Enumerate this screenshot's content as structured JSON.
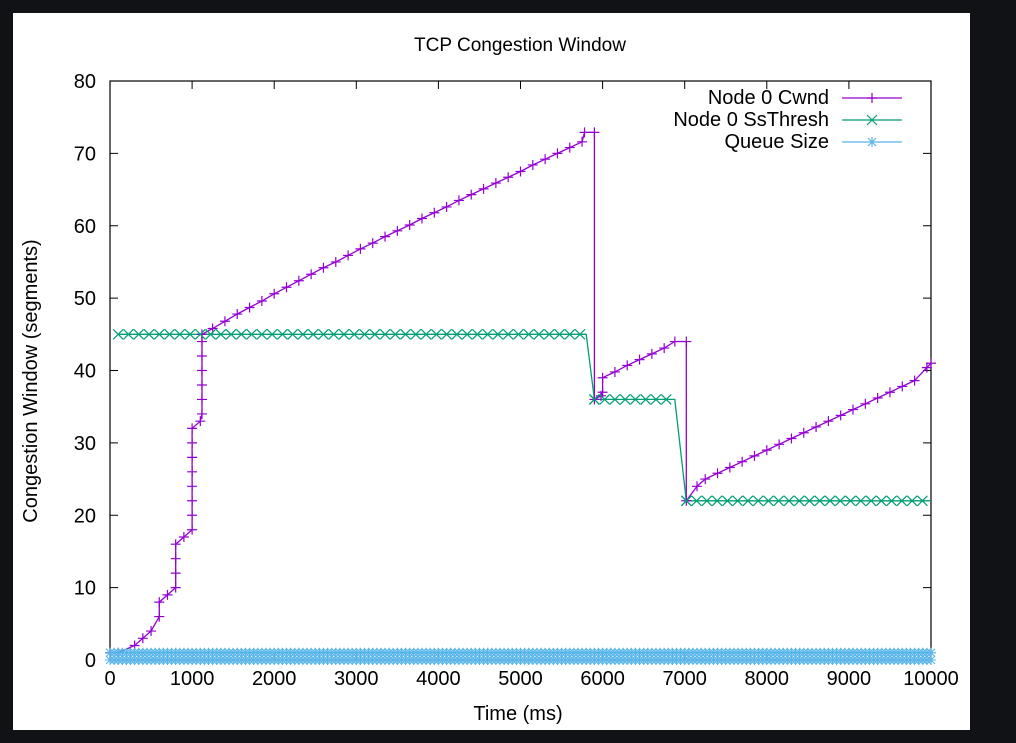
{
  "chart_data": {
    "type": "line",
    "title": "TCP Congestion Window",
    "xlabel": "Time (ms)",
    "ylabel": "Congestion Window (segments)",
    "xlim": [
      0,
      10000
    ],
    "ylim": [
      0,
      80
    ],
    "xticks": [
      "0",
      "1000",
      "2000",
      "3000",
      "4000",
      "5000",
      "6000",
      "7000",
      "8000",
      "9000",
      "10000"
    ],
    "yticks": [
      "0",
      "10",
      "20",
      "30",
      "40",
      "50",
      "60",
      "70",
      "80"
    ],
    "grid": false,
    "legend_position": "top-right",
    "series": [
      {
        "name": "Node 0 Cwnd",
        "color": "#9400d3",
        "marker": "plus",
        "points": [
          [
            0,
            1
          ],
          [
            100,
            1
          ],
          [
            300,
            2
          ],
          [
            400,
            3
          ],
          [
            500,
            4
          ],
          [
            600,
            6
          ],
          [
            600,
            8
          ],
          [
            700,
            9
          ],
          [
            800,
            10
          ],
          [
            800,
            12
          ],
          [
            800,
            14
          ],
          [
            800,
            16
          ],
          [
            900,
            17
          ],
          [
            1000,
            18
          ],
          [
            1000,
            20
          ],
          [
            1000,
            22
          ],
          [
            1000,
            24
          ],
          [
            1000,
            26
          ],
          [
            1000,
            28
          ],
          [
            1000,
            30
          ],
          [
            1000,
            32
          ],
          [
            1100,
            33
          ],
          [
            1120,
            34
          ],
          [
            1120,
            36
          ],
          [
            1120,
            38
          ],
          [
            1120,
            40
          ],
          [
            1120,
            42
          ],
          [
            1120,
            44
          ],
          [
            1120,
            45
          ],
          [
            1250,
            45.8
          ],
          [
            1400,
            46.8
          ],
          [
            1550,
            47.8
          ],
          [
            1700,
            48.7
          ],
          [
            1850,
            49.6
          ],
          [
            2000,
            50.6
          ],
          [
            2150,
            51.5
          ],
          [
            2300,
            52.4
          ],
          [
            2450,
            53.3
          ],
          [
            2600,
            54.2
          ],
          [
            2750,
            55
          ],
          [
            2900,
            55.9
          ],
          [
            3050,
            56.8
          ],
          [
            3200,
            57.6
          ],
          [
            3350,
            58.5
          ],
          [
            3500,
            59.3
          ],
          [
            3650,
            60.1
          ],
          [
            3800,
            61
          ],
          [
            3950,
            61.8
          ],
          [
            4100,
            62.6
          ],
          [
            4250,
            63.5
          ],
          [
            4400,
            64.3
          ],
          [
            4550,
            65.1
          ],
          [
            4700,
            65.9
          ],
          [
            4850,
            66.7
          ],
          [
            5000,
            67.5
          ],
          [
            5150,
            68.4
          ],
          [
            5300,
            69.2
          ],
          [
            5450,
            70
          ],
          [
            5600,
            70.8
          ],
          [
            5750,
            71.6
          ],
          [
            5780,
            72.9
          ],
          [
            5900,
            72.9
          ],
          [
            5900,
            36
          ],
          [
            5980,
            36.5
          ],
          [
            6000,
            37
          ],
          [
            6000,
            39
          ],
          [
            6150,
            39.8
          ],
          [
            6300,
            40.7
          ],
          [
            6450,
            41.5
          ],
          [
            6600,
            42.3
          ],
          [
            6750,
            43.1
          ],
          [
            6880,
            44
          ],
          [
            7020,
            44
          ],
          [
            7020,
            22
          ],
          [
            7150,
            24
          ],
          [
            7250,
            25
          ],
          [
            7400,
            25.8
          ],
          [
            7550,
            26.6
          ],
          [
            7700,
            27.4
          ],
          [
            7850,
            28.2
          ],
          [
            8000,
            29
          ],
          [
            8150,
            29.8
          ],
          [
            8300,
            30.6
          ],
          [
            8450,
            31.4
          ],
          [
            8600,
            32.2
          ],
          [
            8750,
            33
          ],
          [
            8900,
            33.8
          ],
          [
            9050,
            34.6
          ],
          [
            9200,
            35.4
          ],
          [
            9350,
            36.2
          ],
          [
            9500,
            37
          ],
          [
            9650,
            37.8
          ],
          [
            9800,
            38.6
          ],
          [
            9950,
            40.4
          ],
          [
            10000,
            41
          ]
        ]
      },
      {
        "name": "Node 0 SsThresh",
        "color": "#009e73",
        "marker": "cross",
        "points": [
          [
            100,
            45
          ],
          [
            5800,
            45
          ],
          [
            5900,
            36
          ],
          [
            6880,
            36
          ],
          [
            7020,
            22
          ],
          [
            10000,
            22
          ]
        ]
      },
      {
        "name": "Queue Size",
        "color": "#56b4e9",
        "marker": "star",
        "points": [
          [
            0,
            0
          ],
          [
            10000,
            0
          ],
          [
            10000,
            1
          ],
          [
            0,
            1
          ]
        ]
      }
    ]
  }
}
